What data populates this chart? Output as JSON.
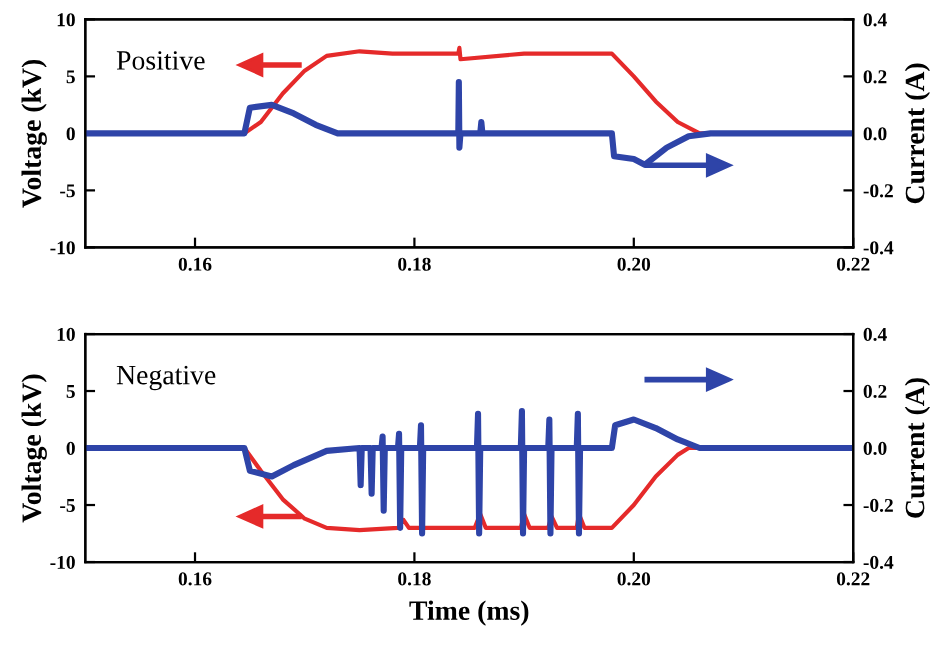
{
  "chart_data": [
    {
      "type": "line",
      "ylabel": "Voltage (kV)",
      "y2label": "Current (A)",
      "annotations": [
        "Positive"
      ],
      "xlim": [
        0.15,
        0.22
      ],
      "xticks": [
        0.16,
        0.18,
        {
          "value": 0.2,
          "label": "0.20"
        },
        0.22
      ],
      "ylim": [
        -10,
        10
      ],
      "yticks": [
        -10,
        -5,
        0,
        5,
        10
      ],
      "y2lim": [
        -0.4,
        0.4
      ],
      "y2ticks": [
        -0.4,
        -0.2,
        {
          "value": 0,
          "label": "0.0"
        },
        0.2,
        0.4
      ],
      "grid": false,
      "legend": false,
      "series": [
        {
          "color": "#e52a2a",
          "x": [
            0.15,
            0.1645,
            0.166,
            0.168,
            0.17,
            0.172,
            0.175,
            0.178,
            0.184,
            0.1841,
            0.1842,
            0.19,
            0.198,
            0.2,
            0.202,
            0.204,
            0.206,
            0.22
          ],
          "values": [
            0,
            0,
            1,
            3.5,
            5.5,
            6.8,
            7.2,
            7,
            7,
            7.5,
            6.5,
            7,
            7,
            5,
            2.8,
            1,
            0,
            0
          ]
        },
        {
          "color": "#2e44a8",
          "axis": "y2",
          "x": [
            0.15,
            0.1645,
            0.165,
            0.167,
            0.169,
            0.171,
            0.173,
            0.184,
            0.18405,
            0.1841,
            0.1842,
            0.186,
            0.1861,
            0.1862,
            0.198,
            0.1982,
            0.2,
            0.201,
            0.203,
            0.205,
            0.207,
            0.22
          ],
          "values": [
            0,
            0,
            0.09,
            0.1,
            0.07,
            0.03,
            0,
            0,
            0.18,
            -0.05,
            0,
            0,
            0.04,
            0,
            0,
            -0.08,
            -0.09,
            -0.11,
            -0.05,
            -0.01,
            0,
            0
          ]
        }
      ]
    },
    {
      "type": "line",
      "xlabel": "Time (ms)",
      "ylabel": "Voltage (kV)",
      "y2label": "Current (A)",
      "annotations": [
        "Negative"
      ],
      "xlim": [
        0.15,
        0.22
      ],
      "xticks": [
        0.16,
        0.18,
        {
          "value": 0.2,
          "label": "0.20"
        },
        0.22
      ],
      "ylim": [
        -10,
        10
      ],
      "yticks": [
        -10,
        -5,
        0,
        5,
        10
      ],
      "y2lim": [
        -0.4,
        0.4
      ],
      "y2ticks": [
        -0.4,
        -0.2,
        {
          "value": 0,
          "label": "0.0"
        },
        0.2,
        0.4
      ],
      "grid": false,
      "legend": false,
      "series": [
        {
          "color": "#e52a2a",
          "x": [
            0.15,
            0.1645,
            0.166,
            0.168,
            0.17,
            0.172,
            0.175,
            0.1785,
            0.179,
            0.1795,
            0.1855,
            0.186,
            0.1865,
            0.1897,
            0.19,
            0.1905,
            0.1922,
            0.1925,
            0.193,
            0.1948,
            0.195,
            0.1955,
            0.198,
            0.2,
            0.202,
            0.204,
            0.205,
            0.22
          ],
          "values": [
            0,
            0,
            -2,
            -4.5,
            -6.2,
            -7,
            -7.2,
            -7,
            -6.3,
            -7,
            -7,
            -5.8,
            -7,
            -7,
            -5.8,
            -7,
            -7,
            -6,
            -7,
            -7,
            -5.8,
            -7,
            -7,
            -5,
            -2.5,
            -0.6,
            0,
            0
          ]
        },
        {
          "color": "#2e44a8",
          "axis": "y2",
          "x": [
            0.15,
            0.1645,
            0.165,
            0.167,
            0.169,
            0.172,
            0.175,
            0.1751,
            0.1752,
            0.176,
            0.1761,
            0.1762,
            0.177,
            0.1771,
            0.1772,
            0.1773,
            0.1785,
            0.1786,
            0.1787,
            0.1788,
            0.1805,
            0.1806,
            0.1807,
            0.1808,
            0.1857,
            0.1858,
            0.1859,
            0.186,
            0.1897,
            0.1898,
            0.1899,
            0.19,
            0.1922,
            0.1923,
            0.1924,
            0.1925,
            0.1948,
            0.1949,
            0.195,
            0.1951,
            0.198,
            0.1983,
            0.2,
            0.202,
            0.204,
            0.206,
            0.22
          ],
          "values": [
            0,
            0,
            -0.08,
            -0.1,
            -0.06,
            -0.01,
            0,
            -0.13,
            0,
            0,
            -0.16,
            0,
            0,
            0.04,
            -0.22,
            0,
            0,
            0.05,
            -0.28,
            0,
            0,
            0.08,
            -0.3,
            0,
            0,
            0.12,
            -0.3,
            0,
            0,
            0.13,
            -0.3,
            0,
            0,
            0.1,
            -0.3,
            0,
            0,
            0.12,
            -0.3,
            0,
            0,
            0.08,
            0.1,
            0.07,
            0.03,
            0,
            0
          ]
        }
      ]
    }
  ]
}
